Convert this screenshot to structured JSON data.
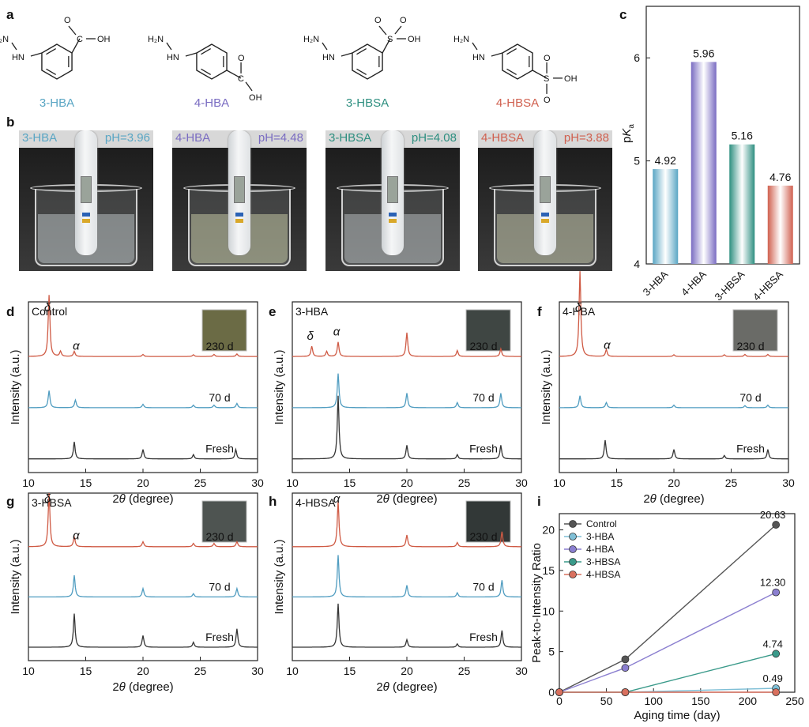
{
  "panel_letters": [
    "a",
    "b",
    "c",
    "d",
    "e",
    "f",
    "g",
    "h",
    "i"
  ],
  "panel_a": {
    "molecules": [
      {
        "name": "3-HBA",
        "color": "#5aa6c4",
        "group_atoms": {
          "c": "C",
          "oh": "OH",
          "o": "O",
          "n_top": "H₂N",
          "n_bottom": "HN"
        },
        "type": "meta-carboxyl"
      },
      {
        "name": "4-HBA",
        "color": "#7a6cc2",
        "group_atoms": {
          "c": "C",
          "oh": "OH",
          "o": "O",
          "n_top": "H₂N",
          "n_bottom": "HN"
        },
        "type": "para-carboxyl"
      },
      {
        "name": "3-HBSA",
        "color": "#2e8f80",
        "group_atoms": {
          "s": "S",
          "oh": "OH",
          "o": "O",
          "n_top": "H₂N",
          "n_bottom": "HN"
        },
        "type": "meta-sulfonyl"
      },
      {
        "name": "4-HBSA",
        "color": "#d0604f",
        "group_atoms": {
          "s": "S",
          "oh": "OH",
          "o": "O",
          "n_top": "H₂N",
          "n_bottom": "HN"
        },
        "type": "para-sulfonyl"
      }
    ]
  },
  "panel_b": {
    "photos": [
      {
        "label": "3-HBA",
        "value": "pH=3.96",
        "color": "#5aa6c4",
        "liquid": "#cfd6da"
      },
      {
        "label": "4-HBA",
        "value": "pH=4.48",
        "color": "#7a6cc2",
        "liquid": "#d9ddb4"
      },
      {
        "label": "3-HBSA",
        "value": "pH=4.08",
        "color": "#2e8f80",
        "liquid": "#c9d0d3"
      },
      {
        "label": "4-HBSA",
        "value": "pH=3.88",
        "color": "#d0604f",
        "liquid": "#d8d9b8"
      }
    ]
  },
  "chart_data": [
    {
      "panel": "c",
      "type": "bar",
      "categories": [
        "3-HBA",
        "4-HBA",
        "3-HBSA",
        "4-HBSA"
      ],
      "values": [
        4.92,
        5.96,
        5.16,
        4.76
      ],
      "value_labels": [
        "4.92",
        "5.96",
        "5.16",
        "4.76"
      ],
      "colors": [
        "#5aa6c4",
        "#7a6cc2",
        "#2e8f80",
        "#d0604f"
      ],
      "ylabel": "pKa",
      "ylim": [
        4,
        6.5
      ],
      "yticks": [
        4,
        5,
        6
      ],
      "xlabel": ""
    },
    {
      "panel": "d",
      "type": "line",
      "sample": "Control",
      "xlim": [
        10,
        30
      ],
      "xticks": [
        10,
        15,
        20,
        25,
        30
      ],
      "xlabel": "2θ (degree)",
      "ylabel": "Intensity (a.u.)",
      "film_color": "#6b6b45",
      "series": [
        {
          "name": "Fresh",
          "color": "#333333",
          "peaks": [
            [
              14.0,
              1.0
            ],
            [
              20.0,
              0.55
            ],
            [
              24.4,
              0.25
            ],
            [
              28.1,
              0.55
            ]
          ]
        },
        {
          "name": "70 d",
          "color": "#4f9cc0",
          "peaks": [
            [
              11.8,
              1.0
            ],
            [
              14.1,
              0.45
            ],
            [
              20.0,
              0.2
            ],
            [
              24.4,
              0.15
            ],
            [
              26.2,
              0.15
            ],
            [
              28.2,
              0.25
            ]
          ]
        },
        {
          "name": "230 d",
          "color": "#cf5a44",
          "peaks": [
            [
              11.8,
              3.6
            ],
            [
              12.8,
              0.3
            ],
            [
              14.0,
              0.3
            ],
            [
              20.0,
              0.12
            ],
            [
              24.4,
              0.1
            ],
            [
              26.2,
              0.12
            ],
            [
              28.2,
              0.15
            ]
          ]
        }
      ],
      "annotations": [
        {
          "text": "δ",
          "x": 11.8
        },
        {
          "text": "α",
          "x": 14.3
        }
      ]
    },
    {
      "panel": "e",
      "type": "line",
      "sample": "3-HBA",
      "xlim": [
        10,
        30
      ],
      "xticks": [
        10,
        15,
        20,
        25,
        30
      ],
      "xlabel": "2θ (degree)",
      "ylabel": "Intensity (a.u.)",
      "film_color": "#3f4643",
      "series": [
        {
          "name": "Fresh",
          "color": "#333333",
          "peaks": [
            [
              14.0,
              3.7
            ],
            [
              20.0,
              0.8
            ],
            [
              24.4,
              0.25
            ],
            [
              28.2,
              0.8
            ]
          ]
        },
        {
          "name": "70 d",
          "color": "#4f9cc0",
          "peaks": [
            [
              14.0,
              2.0
            ],
            [
              20.0,
              0.85
            ],
            [
              24.4,
              0.3
            ],
            [
              28.2,
              0.85
            ]
          ]
        },
        {
          "name": "230 d",
          "color": "#cf5a44",
          "peaks": [
            [
              11.7,
              0.6
            ],
            [
              13.0,
              0.3
            ],
            [
              14.0,
              0.85
            ],
            [
              20.0,
              1.4
            ],
            [
              24.4,
              0.35
            ],
            [
              28.2,
              0.45
            ]
          ]
        }
      ],
      "annotations": [
        {
          "text": "δ",
          "x": 11.7
        },
        {
          "text": "α",
          "x": 14.0
        }
      ]
    },
    {
      "panel": "f",
      "type": "line",
      "sample": "4-HBA",
      "xlim": [
        10,
        30
      ],
      "xticks": [
        10,
        15,
        20,
        25,
        30
      ],
      "xlabel": "2θ (degree)",
      "ylabel": "Intensity (a.u.)",
      "film_color": "#6a6b67",
      "series": [
        {
          "name": "Fresh",
          "color": "#333333",
          "peaks": [
            [
              14.0,
              1.1
            ],
            [
              20.0,
              0.55
            ],
            [
              24.4,
              0.2
            ],
            [
              28.2,
              0.55
            ]
          ]
        },
        {
          "name": "70 d",
          "color": "#4f9cc0",
          "peaks": [
            [
              11.8,
              0.7
            ],
            [
              14.1,
              0.3
            ],
            [
              20.0,
              0.15
            ],
            [
              26.2,
              0.12
            ],
            [
              28.2,
              0.15
            ]
          ]
        },
        {
          "name": "230 d",
          "color": "#cf5a44",
          "peaks": [
            [
              11.8,
              5.0
            ],
            [
              14.1,
              0.4
            ],
            [
              20.0,
              0.1
            ],
            [
              24.4,
              0.1
            ],
            [
              26.2,
              0.12
            ],
            [
              28.2,
              0.12
            ]
          ]
        }
      ],
      "annotations": [
        {
          "text": "δ",
          "x": 11.8
        },
        {
          "text": "α",
          "x": 14.3
        }
      ]
    },
    {
      "panel": "g",
      "type": "line",
      "sample": "3-HBSA",
      "xlim": [
        10,
        30
      ],
      "xticks": [
        10,
        15,
        20,
        25,
        30
      ],
      "xlabel": "2θ (degree)",
      "ylabel": "Intensity (a.u.)",
      "film_color": "#4e5451",
      "series": [
        {
          "name": "Fresh",
          "color": "#333333",
          "peaks": [
            [
              14.0,
              2.0
            ],
            [
              20.0,
              0.7
            ],
            [
              24.4,
              0.3
            ],
            [
              28.2,
              1.1
            ]
          ]
        },
        {
          "name": "70 d",
          "color": "#4f9cc0",
          "peaks": [
            [
              14.0,
              1.3
            ],
            [
              20.0,
              0.5
            ],
            [
              24.4,
              0.2
            ],
            [
              28.2,
              0.5
            ]
          ]
        },
        {
          "name": "230 d",
          "color": "#cf5a44",
          "peaks": [
            [
              11.8,
              3.2
            ],
            [
              14.0,
              0.6
            ],
            [
              20.0,
              0.3
            ],
            [
              24.4,
              0.2
            ],
            [
              26.2,
              0.2
            ],
            [
              28.2,
              0.3
            ]
          ]
        }
      ],
      "annotations": [
        {
          "text": "δ",
          "x": 11.8
        },
        {
          "text": "α",
          "x": 14.3
        }
      ]
    },
    {
      "panel": "h",
      "type": "line",
      "sample": "4-HBSA",
      "xlim": [
        10,
        30
      ],
      "xticks": [
        10,
        15,
        20,
        25,
        30
      ],
      "xlabel": "2θ (degree)",
      "ylabel": "Intensity (a.u.)",
      "film_color": "#323837",
      "series": [
        {
          "name": "Fresh",
          "color": "#333333",
          "peaks": [
            [
              14.0,
              2.6
            ],
            [
              20.0,
              0.45
            ],
            [
              24.4,
              0.2
            ],
            [
              28.3,
              1.0
            ]
          ]
        },
        {
          "name": "70 d",
          "color": "#4f9cc0",
          "peaks": [
            [
              14.0,
              2.5
            ],
            [
              20.0,
              0.7
            ],
            [
              24.4,
              0.25
            ],
            [
              28.3,
              1.0
            ]
          ]
        },
        {
          "name": "230 d",
          "color": "#cf5a44",
          "peaks": [
            [
              14.0,
              2.7
            ],
            [
              20.0,
              0.7
            ],
            [
              24.4,
              0.25
            ],
            [
              28.3,
              0.9
            ]
          ]
        }
      ],
      "annotations": [
        {
          "text": "α",
          "x": 14.0
        }
      ]
    },
    {
      "panel": "i",
      "type": "line",
      "xlabel": "Aging time (day)",
      "ylabel": "Peak-to-Intensity Ratio",
      "xlim": [
        0,
        250
      ],
      "ylim": [
        0,
        22
      ],
      "xticks": [
        0,
        50,
        100,
        150,
        200,
        250
      ],
      "yticks": [
        0,
        5,
        10,
        15,
        20
      ],
      "x": [
        0,
        70,
        230
      ],
      "series": [
        {
          "name": "Control",
          "color": "#555555",
          "values": [
            0,
            4.05,
            20.63
          ],
          "end_label": "20.63"
        },
        {
          "name": "3-HBA",
          "color": "#7fbfd6",
          "values": [
            0,
            0,
            0.49
          ],
          "end_label": "0.49"
        },
        {
          "name": "4-HBA",
          "color": "#8b7fd0",
          "values": [
            0,
            3.0,
            12.3
          ],
          "end_label": "12.30"
        },
        {
          "name": "3-HBSA",
          "color": "#3a9a8a",
          "values": [
            0,
            0,
            4.74
          ],
          "end_label": "4.74"
        },
        {
          "name": "4-HBSA",
          "color": "#d9705e",
          "values": [
            0,
            0,
            0
          ],
          "end_label": ""
        }
      ],
      "legend": "top-left"
    }
  ]
}
